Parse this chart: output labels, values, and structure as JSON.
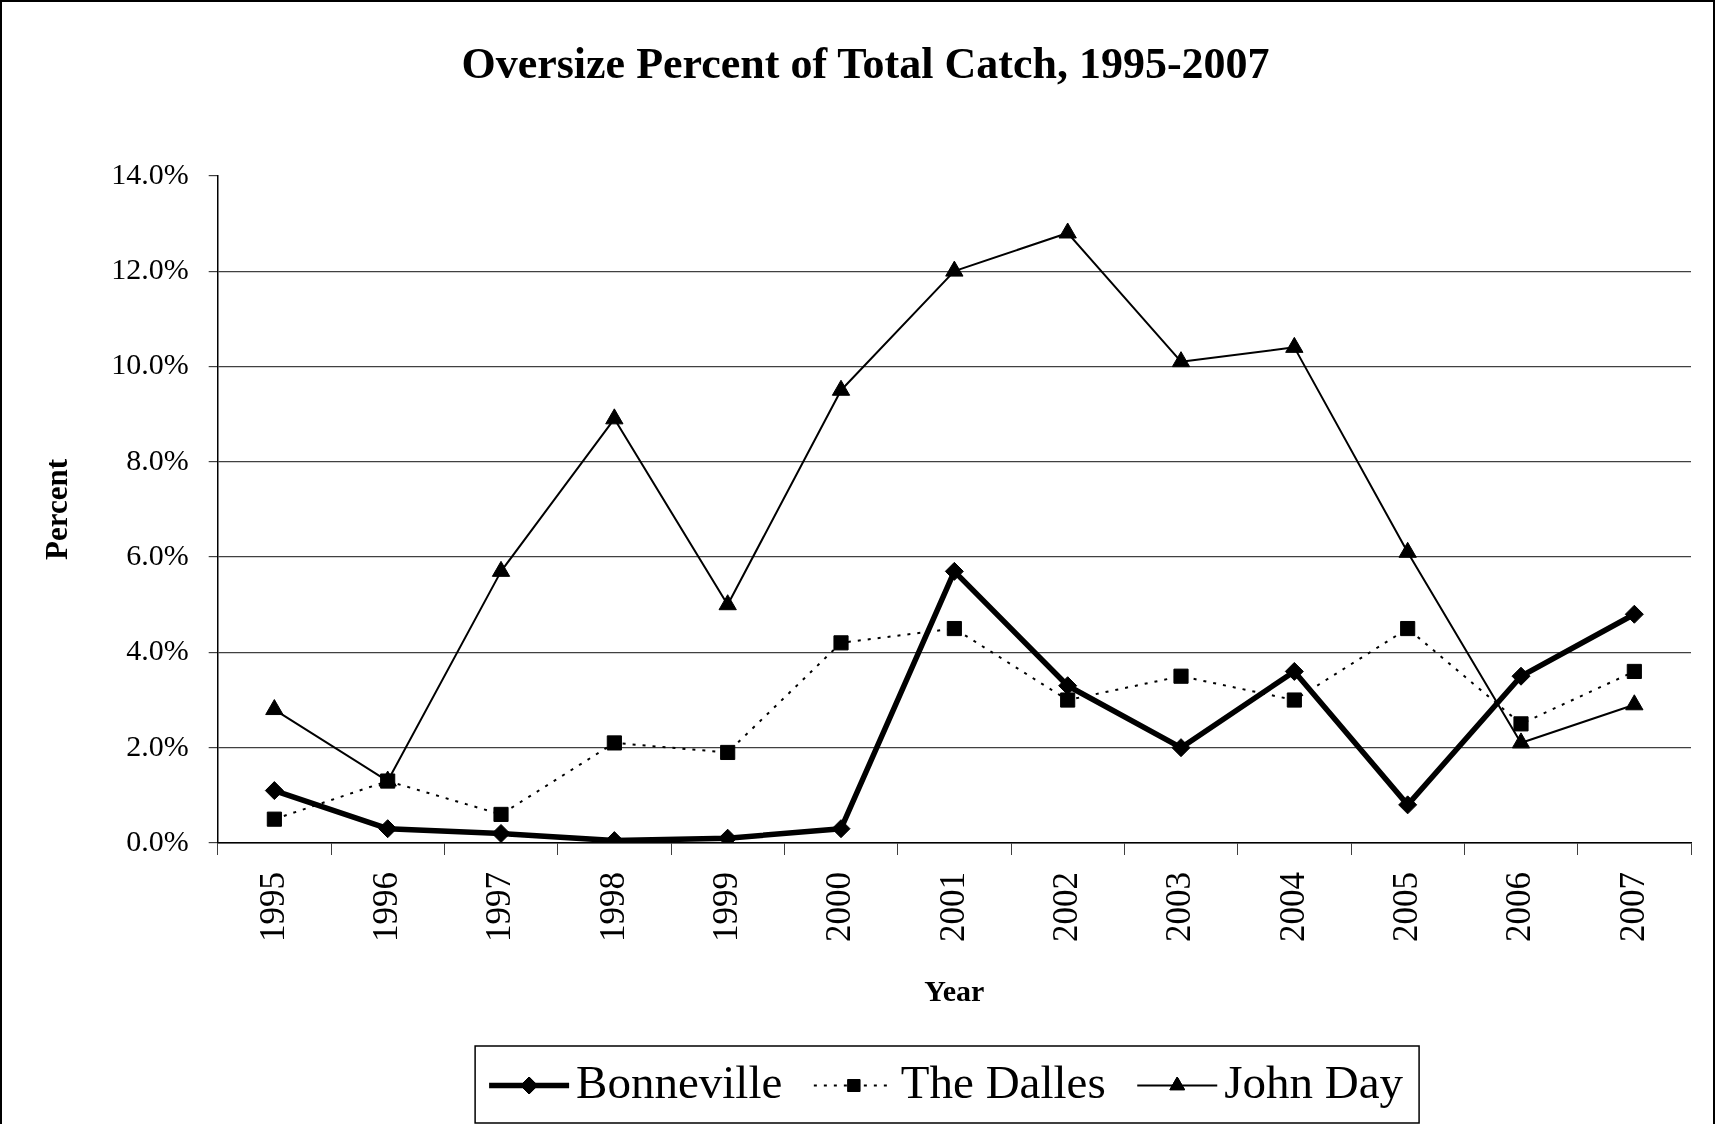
{
  "chart_data": {
    "type": "line",
    "title": "Oversize Percent of Total Catch, 1995-2007",
    "xlabel": "Year",
    "ylabel": "Percent",
    "categories": [
      "1995",
      "1996",
      "1997",
      "1998",
      "1999",
      "2000",
      "2001",
      "2002",
      "2003",
      "2004",
      "2005",
      "2006",
      "2007"
    ],
    "series": [
      {
        "name": "Bonneville",
        "color": "#000000",
        "marker": "diamond",
        "line_style": "solid",
        "values": [
          1.1,
          0.3,
          0.2,
          0.05,
          0.1,
          0.3,
          5.7,
          3.3,
          2.0,
          3.6,
          0.8,
          3.5,
          4.8
        ]
      },
      {
        "name": "The Dalles",
        "color": "#000000",
        "marker": "square",
        "line_style": "dotted",
        "values": [
          0.5,
          1.3,
          0.6,
          2.1,
          1.9,
          4.2,
          4.5,
          3.0,
          3.5,
          3.0,
          4.5,
          2.5,
          3.6
        ]
      },
      {
        "name": "John Day",
        "color": "#000000",
        "marker": "triangle",
        "line_style": "solid",
        "values": [
          2.8,
          1.3,
          5.7,
          8.9,
          5.0,
          9.5,
          12.0,
          12.8,
          10.1,
          10.4,
          6.1,
          2.1,
          2.9
        ]
      }
    ],
    "ylim": [
      0,
      14
    ],
    "yticks": [
      {
        "value": 0,
        "label": "0.0%"
      },
      {
        "value": 2,
        "label": "2.0%"
      },
      {
        "value": 4,
        "label": "4.0%"
      },
      {
        "value": 6,
        "label": "6.0%"
      },
      {
        "value": 8,
        "label": "8.0%"
      },
      {
        "value": 10,
        "label": "10.0%"
      },
      {
        "value": 12,
        "label": "12.0%"
      },
      {
        "value": 14,
        "label": "14.0%"
      }
    ],
    "grid": "y",
    "legend": "bottom"
  }
}
